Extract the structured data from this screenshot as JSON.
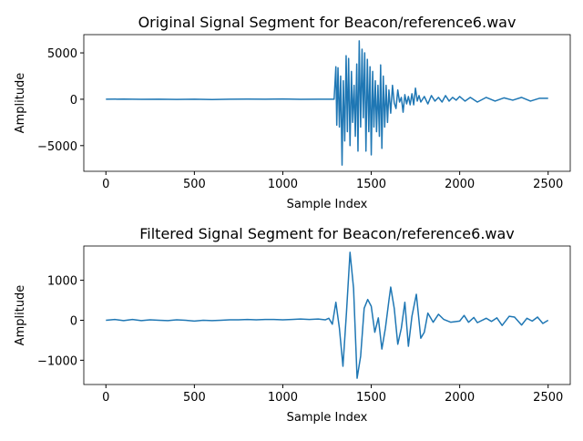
{
  "chart_data": [
    {
      "type": "line",
      "title": "Original Signal Segment for Beacon/reference6.wav",
      "x_label": "Sample Index",
      "y_label": "Amplitude",
      "xlim": [
        -125,
        2625
      ],
      "ylim": [
        -7770,
        6970
      ],
      "xticks": [
        0,
        500,
        1000,
        1500,
        2000,
        2500
      ],
      "yticks": [
        {
          "value": -5000,
          "label": "−5000"
        },
        0,
        5000
      ],
      "x": [
        0,
        100,
        200,
        300,
        400,
        500,
        600,
        700,
        800,
        900,
        1000,
        1100,
        1200,
        1290,
        1300,
        1305,
        1312,
        1320,
        1327,
        1335,
        1342,
        1350,
        1358,
        1365,
        1372,
        1380,
        1388,
        1395,
        1403,
        1410,
        1418,
        1425,
        1432,
        1440,
        1448,
        1455,
        1463,
        1470,
        1478,
        1486,
        1493,
        1500,
        1508,
        1515,
        1523,
        1530,
        1538,
        1546,
        1553,
        1560,
        1568,
        1576,
        1584,
        1592,
        1600,
        1610,
        1620,
        1630,
        1640,
        1650,
        1660,
        1670,
        1680,
        1690,
        1700,
        1710,
        1720,
        1730,
        1740,
        1750,
        1760,
        1770,
        1780,
        1800,
        1820,
        1840,
        1860,
        1880,
        1900,
        1920,
        1940,
        1960,
        1980,
        2000,
        2030,
        2060,
        2100,
        2150,
        2200,
        2250,
        2300,
        2350,
        2400,
        2450,
        2500
      ],
      "series": [
        {
          "color": "#1f77b4",
          "values": [
            0,
            20,
            -10,
            10,
            -20,
            0,
            -30,
            10,
            20,
            0,
            30,
            -10,
            10,
            0,
            3500,
            -2800,
            3400,
            -3000,
            2500,
            -7100,
            2000,
            -4500,
            4700,
            -3500,
            4400,
            -5000,
            3000,
            -2500,
            1500,
            -4000,
            3800,
            -5600,
            6300,
            -3000,
            5400,
            -2000,
            5000,
            -5600,
            4300,
            -3500,
            3500,
            -6000,
            3000,
            -3000,
            2000,
            -3500,
            1500,
            -4000,
            3700,
            -5300,
            2500,
            -3000,
            1500,
            -2500,
            1000,
            -1500,
            1500,
            -400,
            -1000,
            1000,
            -300,
            200,
            -1400,
            500,
            -500,
            300,
            -600,
            600,
            -600,
            1200,
            -200,
            400,
            -300,
            300,
            -500,
            400,
            -200,
            200,
            -300,
            400,
            -200,
            200,
            -100,
            300,
            -200,
            200,
            -300,
            200,
            -200,
            150,
            -100,
            200,
            -200,
            100,
            100
          ]
        }
      ]
    },
    {
      "type": "line",
      "title": "Filtered Signal Segment for Beacon/reference6.wav",
      "x_label": "Sample Index",
      "y_label": "Amplitude",
      "xlim": [
        -125,
        2625
      ],
      "ylim": [
        -1607,
        1857
      ],
      "xticks": [
        0,
        500,
        1000,
        1500,
        2000,
        2500
      ],
      "yticks": [
        {
          "value": -1000,
          "label": "−1000"
        },
        0,
        1000
      ],
      "x": [
        0,
        50,
        100,
        150,
        200,
        250,
        300,
        350,
        400,
        450,
        500,
        550,
        600,
        650,
        700,
        750,
        800,
        850,
        900,
        950,
        1000,
        1050,
        1100,
        1150,
        1200,
        1240,
        1260,
        1280,
        1300,
        1320,
        1340,
        1360,
        1380,
        1400,
        1420,
        1440,
        1460,
        1480,
        1500,
        1520,
        1540,
        1560,
        1580,
        1600,
        1610,
        1630,
        1650,
        1670,
        1690,
        1710,
        1730,
        1755,
        1780,
        1800,
        1820,
        1850,
        1880,
        1910,
        1950,
        2000,
        2025,
        2050,
        2080,
        2100,
        2150,
        2180,
        2210,
        2240,
        2280,
        2310,
        2350,
        2380,
        2410,
        2440,
        2470,
        2500
      ],
      "series": [
        {
          "color": "#1f77b4",
          "values": [
            0,
            20,
            -10,
            20,
            -10,
            10,
            0,
            -10,
            10,
            0,
            -20,
            0,
            -10,
            0,
            10,
            10,
            20,
            10,
            20,
            20,
            10,
            20,
            30,
            20,
            30,
            10,
            50,
            -100,
            450,
            -200,
            -1150,
            200,
            1700,
            800,
            -1450,
            -900,
            300,
            520,
            350,
            -300,
            60,
            -720,
            -200,
            500,
            830,
            300,
            -600,
            -200,
            450,
            -650,
            100,
            650,
            -450,
            -300,
            180,
            -50,
            150,
            20,
            -50,
            -20,
            120,
            -50,
            70,
            -60,
            50,
            -30,
            60,
            -130,
            100,
            80,
            -120,
            50,
            -20,
            80,
            -80,
            0
          ]
        }
      ]
    }
  ]
}
